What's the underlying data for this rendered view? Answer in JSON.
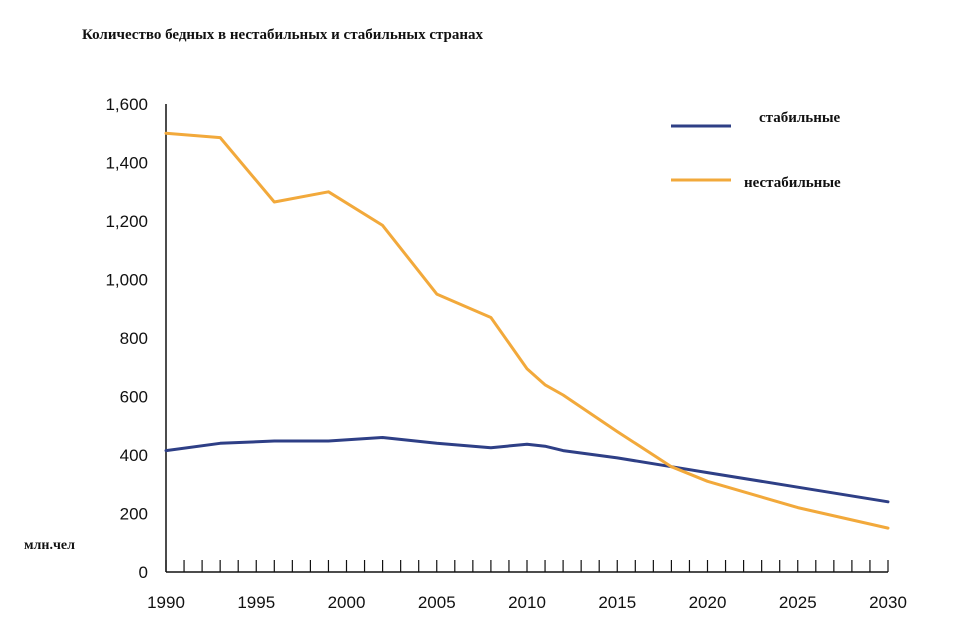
{
  "chart_data": {
    "type": "line",
    "title": "Количество бедных в нестабильных и стабильных странах",
    "ylabel": "млн.чел",
    "xlabel": "",
    "xlim": [
      1990,
      2030
    ],
    "ylim": [
      0,
      1600
    ],
    "x_ticks": [
      "1990",
      "1995",
      "2000",
      "2005",
      "2010",
      "2015",
      "2020",
      "2025",
      "2030"
    ],
    "y_ticks": [
      "0",
      "200",
      "400",
      "600",
      "800",
      "1,000",
      "1,200",
      "1,400",
      "1,600"
    ],
    "legend_position": "top-right",
    "series": [
      {
        "name": "стабильные",
        "color": "#2e3f86",
        "x": [
          1990,
          1993,
          1996,
          1999,
          2002,
          2005,
          2008,
          2010,
          2011,
          2012,
          2015,
          2018,
          2020,
          2025,
          2030
        ],
        "y": [
          415,
          440,
          448,
          448,
          460,
          440,
          425,
          437,
          430,
          415,
          390,
          360,
          340,
          290,
          240
        ]
      },
      {
        "name": "нестабильные",
        "color": "#f2a93b",
        "x": [
          1990,
          1993,
          1996,
          1999,
          2002,
          2005,
          2008,
          2010,
          2011,
          2012,
          2015,
          2018,
          2020,
          2025,
          2030
        ],
        "y": [
          1500,
          1485,
          1265,
          1300,
          1185,
          950,
          870,
          695,
          640,
          605,
          480,
          360,
          310,
          220,
          150
        ]
      }
    ]
  }
}
